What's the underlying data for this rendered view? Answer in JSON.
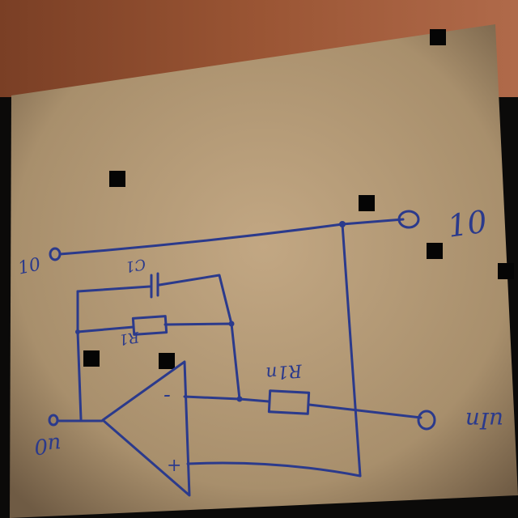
{
  "diagram": {
    "node_top_left": "10",
    "node_top_right": "10",
    "capacitor_label": "C1",
    "resistor_feedback_label": "R1",
    "resistor_input_label": "R1n",
    "opamp_minus": "-",
    "opamp_plus": "+",
    "u_out_label": "u0",
    "u_in_label": "uIn"
  },
  "colors": {
    "ink": "#2b3a8c",
    "cardboard": "#b59a78",
    "brick": "#8a4a2c"
  }
}
